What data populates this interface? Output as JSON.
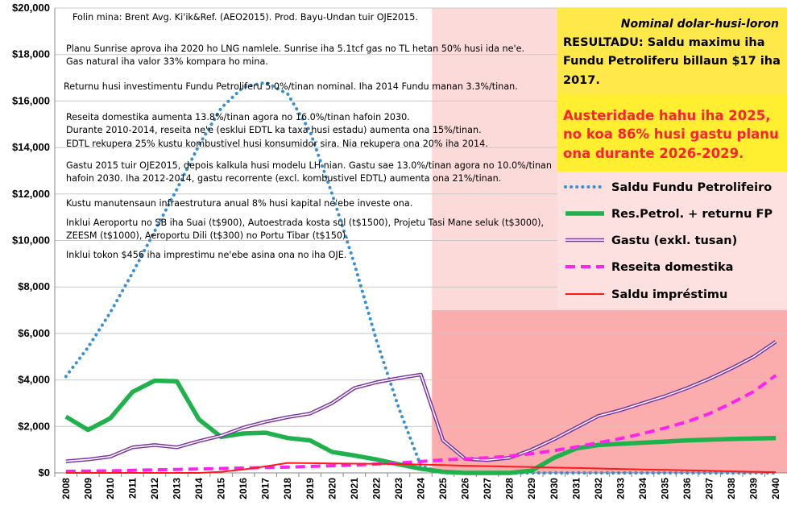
{
  "chart_data": {
    "type": "line",
    "units": "Nominal dolar-husi-loron",
    "x": [
      2008,
      2009,
      2010,
      2011,
      2012,
      2013,
      2014,
      2015,
      2016,
      2017,
      2018,
      2019,
      2020,
      2021,
      2022,
      2023,
      2024,
      2025,
      2026,
      2027,
      2028,
      2029,
      2030,
      2031,
      2032,
      2033,
      2034,
      2035,
      2036,
      2037,
      2038,
      2039,
      2040
    ],
    "ylim": [
      0,
      20000
    ],
    "yticks": [
      "$0",
      "$2,000",
      "$4,000",
      "$6,000",
      "$8,000",
      "$10,000",
      "$12,000",
      "$14,000",
      "$16,000",
      "$18,000",
      "$20,000"
    ],
    "shaded_regions": [
      {
        "from": 2025,
        "to": 2040,
        "ymin": 0,
        "ymax": 20000,
        "color": "#fcdada"
      },
      {
        "from": 2025,
        "to": 2040,
        "ymin": 0,
        "ymax": 7000,
        "color": "#fbacac"
      }
    ],
    "series": [
      {
        "name": "Saldu Fundu Petrolifeiro",
        "color": "#3a8fd0",
        "style": "dotted",
        "values": [
          4150,
          5400,
          6900,
          8600,
          10400,
          12200,
          14100,
          15700,
          16600,
          16800,
          16300,
          14700,
          12000,
          9000,
          5700,
          2800,
          300,
          0,
          0,
          0,
          0,
          0,
          0,
          0,
          0,
          0,
          0,
          0,
          0,
          0,
          0,
          0,
          0
        ]
      },
      {
        "name": "Res.Petrol. + returnu FP",
        "color": "#1fb24c",
        "style": "thick",
        "values": [
          2420,
          1850,
          2350,
          3480,
          3970,
          3940,
          2300,
          1550,
          1700,
          1730,
          1500,
          1400,
          900,
          750,
          580,
          370,
          180,
          50,
          0,
          0,
          0,
          100,
          650,
          1050,
          1200,
          1250,
          1300,
          1350,
          1400,
          1430,
          1460,
          1480,
          1500
        ]
      },
      {
        "name": "Gastu (exkl. tusan)",
        "color": "#7b2fa8",
        "style": "double",
        "values": [
          500,
          580,
          700,
          1100,
          1200,
          1100,
          1370,
          1600,
          1950,
          2200,
          2400,
          2550,
          3000,
          3650,
          3900,
          4080,
          4230,
          1400,
          600,
          550,
          650,
          1000,
          1450,
          1950,
          2450,
          2700,
          3000,
          3300,
          3650,
          4050,
          4500,
          5000,
          5650
        ]
      },
      {
        "name": "Reseita domestika",
        "color": "#ff22ee",
        "style": "dashed",
        "values": [
          70,
          80,
          90,
          110,
          130,
          150,
          170,
          190,
          210,
          230,
          250,
          280,
          310,
          340,
          380,
          430,
          490,
          560,
          600,
          650,
          720,
          830,
          960,
          1120,
          1300,
          1480,
          1690,
          1930,
          2200,
          2550,
          3000,
          3500,
          4200
        ]
      },
      {
        "name": "Saldu impréstimu",
        "color": "#ff1a1a",
        "style": "thin",
        "values": [
          0,
          0,
          0,
          0,
          0,
          0,
          0,
          50,
          150,
          280,
          430,
          420,
          410,
          400,
          390,
          380,
          360,
          340,
          310,
          290,
          270,
          250,
          230,
          210,
          190,
          170,
          150,
          130,
          110,
          90,
          70,
          50,
          30
        ]
      }
    ]
  },
  "legend": [
    {
      "label": "Saldu Fundu Petrolifeiro"
    },
    {
      "label": "Res.Petrol. + returnu FP"
    },
    {
      "label": "Gastu (exkl. tusan)"
    },
    {
      "label": "Reseita domestika"
    },
    {
      "label": "Saldu impréstimu"
    }
  ],
  "notes": {
    "n1": "Folin mina: Brent Avg. Ki'ik&Ref. (AEO2015).   Prod. Bayu-Undan tuir OJE2015.",
    "n2a": "Planu Sunrise aprova iha 2020 ho LNG namlele. Sunrise iha 5.1tcf gas no TL hetan 50% husi ida ne'e.",
    "n2b": "Gas natural iha valor 33% kompara ho mina.",
    "n3": "Returnu husi investimentu Fundu Petroliferu 5.0%/tinan nominal.    Iha 2014 Fundu manan 3.3%/tinan.",
    "n4a": "Reseita domestika aumenta 13.8%/tinan agora no 16.0%/tinan hafoin 2030.",
    "n4b": "Durante 2010-2014, reseita ne'e (esklui EDTL ka taxa husi estadu) aumenta ona 15%/tinan.",
    "n4c": "EDTL rekupera 25% kustu kombustivel husi konsumidor sira. Nia rekupera ona 20% iha 2014.",
    "n5a": "Gastu 2015 tuir OJE2015, depois kalkula husi modelu LH nian. Gastu sae 13.0%/tinan agora no 10.0%/tinan",
    "n5b": "hafoin 2030. Iha 2012-2014, gastu recorrente (excl. kombustivel EDTL) aumenta ona 21%/tinan.",
    "n6": "Kustu manutensaun infraestrutura anual 8% husi kapital ne'ebe investe ona.",
    "n7a": "Inklui Aeroportu no SB iha Suai (t$900), Autoestrada kosta sul (t$1500), Projetu Tasi Mane seluk (t$3000),",
    "n7b": "ZEESM (t$1000), Aeroportu Dili (t$300) no Portu Tibar (t$150).",
    "n8": "Inklui tokon $456 iha imprestimu ne'ebe asina ona no iha OJE."
  },
  "result_box": {
    "units": "Nominal dolar-husi-loron",
    "line1": "RESULTADU: Saldu maximu iha",
    "line2": "Fundu Petroliferu billaun $17 iha",
    "line3": "2017.",
    "red1": "Austeridade hahu iha 2025,",
    "red2": "no koa 86% husi gastu planu",
    "red3": "ona durante 2026-2029."
  }
}
